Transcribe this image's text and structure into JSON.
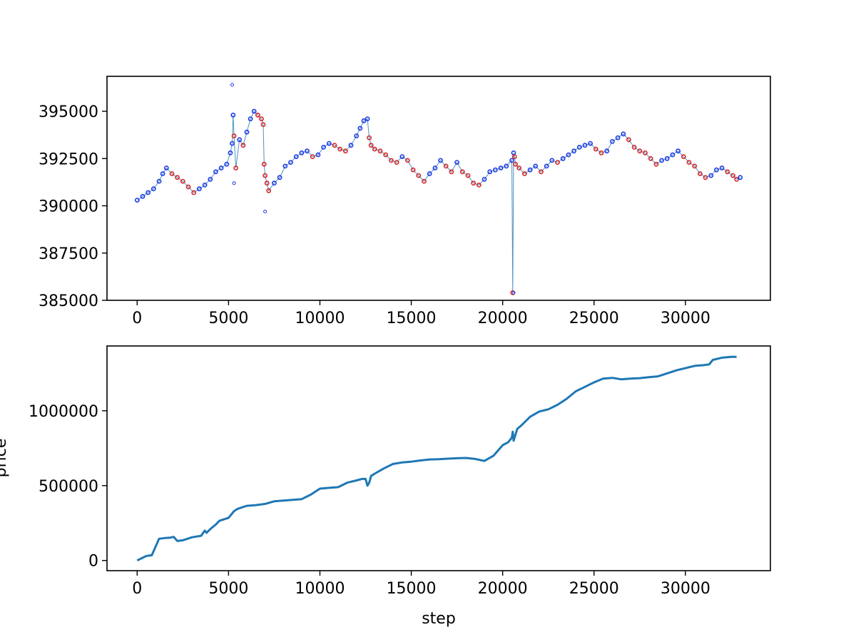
{
  "figure": {
    "background": "#ffffff"
  },
  "chart_data": [
    {
      "type": "scatter",
      "title": "",
      "xlabel": "",
      "ylabel": "",
      "xlim": [
        -1650,
        34650
      ],
      "ylim": [
        385000,
        396850
      ],
      "xticks": [
        0,
        5000,
        10000,
        15000,
        20000,
        25000,
        30000
      ],
      "yticks": [
        385000,
        387500,
        390000,
        392500,
        395000
      ],
      "grid": false,
      "legend": "none",
      "colors": {
        "line": "#4f91c2",
        "buy": "#1f3be6",
        "sell": "#d62728"
      },
      "line_series": {
        "x": [
          0,
          300,
          600,
          900,
          1200,
          1400,
          1600,
          1900,
          2200,
          2500,
          2800,
          3100,
          3400,
          3700,
          4000,
          4300,
          4600,
          4900,
          5100,
          5200,
          5250,
          5300,
          5400,
          5600,
          5800,
          6000,
          6200,
          6400,
          6600,
          6800,
          6900,
          6950,
          7000,
          7100,
          7200,
          7500,
          7800,
          8100,
          8400,
          8700,
          9000,
          9300,
          9600,
          9900,
          10200,
          10500,
          10800,
          11100,
          11400,
          11700,
          12000,
          12200,
          12400,
          12600,
          12700,
          12800,
          13000,
          13300,
          13600,
          13900,
          14200,
          14500,
          14800,
          15100,
          15400,
          15700,
          16000,
          16300,
          16600,
          16900,
          17200,
          17500,
          17800,
          18100,
          18400,
          18700,
          19000,
          19300,
          19600,
          19900,
          20200,
          20500,
          20550,
          20600,
          20650,
          20700,
          20900,
          21200,
          21500,
          21800,
          22100,
          22400,
          22700,
          23000,
          23300,
          23600,
          23900,
          24200,
          24500,
          24800,
          25100,
          25400,
          25700,
          26000,
          26300,
          26600,
          26900,
          27200,
          27500,
          27800,
          28100,
          28400,
          28700,
          29000,
          29300,
          29600,
          29900,
          30200,
          30500,
          30800,
          31100,
          31400,
          31700,
          32000,
          32300,
          32600,
          32800,
          33000
        ],
        "y": [
          390300,
          390500,
          390700,
          390900,
          391300,
          391700,
          392000,
          391700,
          391500,
          391300,
          391000,
          390700,
          390900,
          391100,
          391400,
          391800,
          392000,
          392200,
          392800,
          393300,
          394800,
          393700,
          392000,
          393500,
          393200,
          393900,
          394600,
          395000,
          394800,
          394600,
          394300,
          392200,
          391600,
          391200,
          390800,
          391200,
          391500,
          392100,
          392300,
          392600,
          392800,
          392900,
          392600,
          392700,
          393100,
          393300,
          393200,
          393000,
          392900,
          393200,
          393700,
          394100,
          394500,
          394600,
          393600,
          393200,
          393000,
          392900,
          392700,
          392400,
          392300,
          392600,
          392400,
          391900,
          391600,
          391300,
          391700,
          392000,
          392400,
          392100,
          391800,
          392300,
          391800,
          391600,
          391200,
          391100,
          391400,
          391800,
          391900,
          392000,
          392100,
          392400,
          385400,
          392800,
          392600,
          392200,
          392000,
          391700,
          391900,
          392100,
          391800,
          392100,
          392400,
          392300,
          392500,
          392700,
          392900,
          393100,
          393200,
          393300,
          393000,
          392800,
          392900,
          393400,
          393600,
          393800,
          393500,
          393100,
          392900,
          392800,
          392500,
          392200,
          392400,
          392500,
          392700,
          392900,
          392600,
          392300,
          392100,
          391700,
          391500,
          391600,
          391900,
          392000,
          391800,
          391600,
          391400,
          391500
        ]
      },
      "outliers": [
        {
          "x": 5200,
          "y": 396400
        },
        {
          "x": 5300,
          "y": 391200
        },
        {
          "x": 7000,
          "y": 389700
        },
        {
          "x": 20600,
          "y": 385400
        }
      ]
    },
    {
      "type": "line",
      "title": "",
      "xlabel": "step",
      "ylabel": "price",
      "xlim": [
        -1650,
        34650
      ],
      "ylim": [
        -68000,
        1433000
      ],
      "xticks": [
        0,
        5000,
        10000,
        15000,
        20000,
        25000,
        30000
      ],
      "yticks": [
        0,
        500000,
        1000000
      ],
      "grid": false,
      "legend": "none",
      "colors": {
        "line": "#1f77b4"
      },
      "x": [
        0,
        500,
        800,
        1000,
        1200,
        1500,
        1800,
        2000,
        2200,
        2500,
        3000,
        3500,
        3700,
        3800,
        4000,
        4300,
        4500,
        5000,
        5300,
        5500,
        6000,
        6500,
        7000,
        7500,
        8000,
        8500,
        9000,
        9500,
        10000,
        10500,
        11000,
        11500,
        12000,
        12300,
        12500,
        12600,
        12700,
        12800,
        13000,
        13500,
        14000,
        14500,
        15000,
        15500,
        16000,
        16500,
        17000,
        17500,
        18000,
        18500,
        19000,
        19500,
        20000,
        20300,
        20500,
        20550,
        20600,
        20800,
        21000,
        21500,
        22000,
        22500,
        23000,
        23500,
        24000,
        24500,
        25000,
        25500,
        26000,
        26500,
        27000,
        27500,
        28000,
        28500,
        29000,
        29500,
        30000,
        30500,
        31000,
        31300,
        31500,
        32000,
        32500,
        32800
      ],
      "y": [
        0,
        30000,
        35000,
        90000,
        145000,
        150000,
        152000,
        158000,
        130000,
        135000,
        155000,
        165000,
        200000,
        185000,
        210000,
        240000,
        265000,
        285000,
        330000,
        345000,
        365000,
        370000,
        378000,
        395000,
        400000,
        405000,
        410000,
        440000,
        480000,
        485000,
        490000,
        520000,
        535000,
        545000,
        545000,
        500000,
        520000,
        565000,
        580000,
        615000,
        645000,
        655000,
        660000,
        668000,
        675000,
        677000,
        680000,
        683000,
        685000,
        678000,
        665000,
        700000,
        770000,
        790000,
        820000,
        860000,
        800000,
        880000,
        900000,
        960000,
        995000,
        1010000,
        1040000,
        1080000,
        1130000,
        1160000,
        1190000,
        1215000,
        1220000,
        1210000,
        1215000,
        1218000,
        1225000,
        1230000,
        1250000,
        1270000,
        1285000,
        1300000,
        1305000,
        1310000,
        1340000,
        1355000,
        1360000,
        1360000
      ]
    }
  ]
}
